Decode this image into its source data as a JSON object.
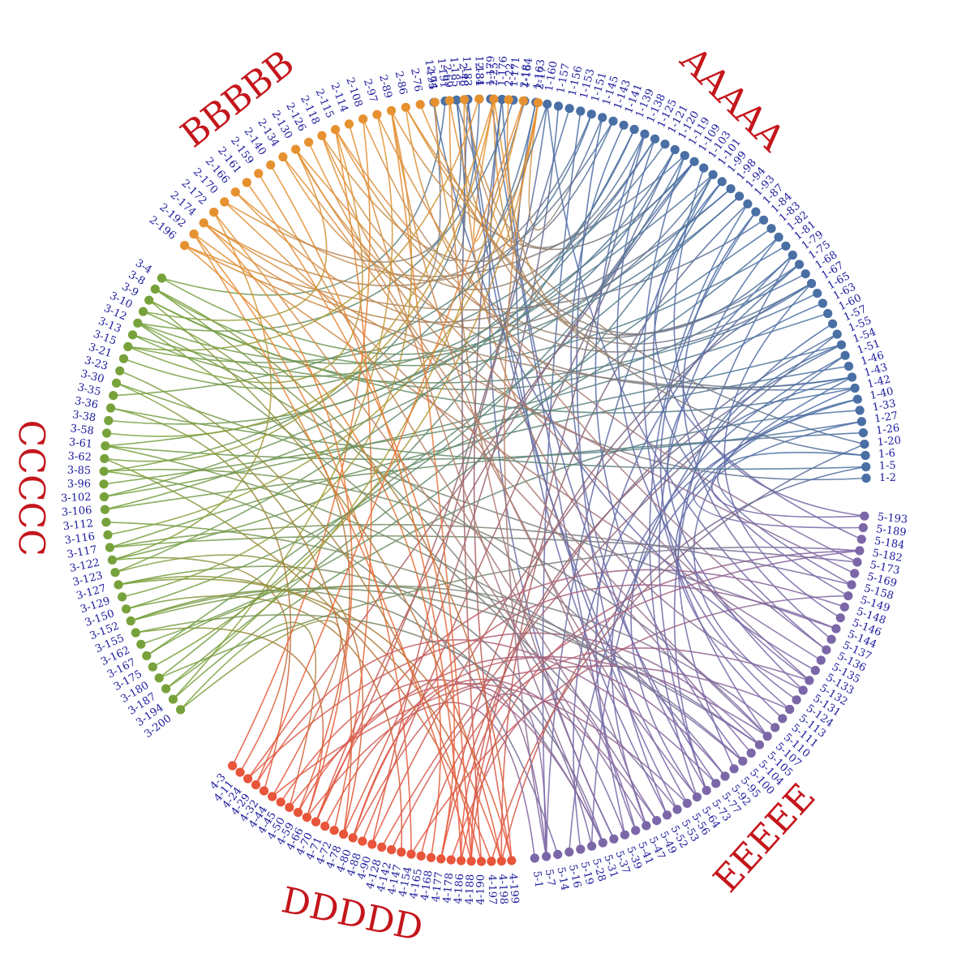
{
  "diagram": {
    "type": "chord-network",
    "groups": [
      {
        "id": "1",
        "title": "AAAAA",
        "color": "#4a6fa5",
        "nodes": [
          "1-195",
          "1-191",
          "1-185",
          "1-183",
          "1-181",
          "1-179",
          "1-176",
          "1-171",
          "1-164",
          "1-163",
          "1-160",
          "1-157",
          "1-156",
          "1-153",
          "1-151",
          "1-145",
          "1-143",
          "1-141",
          "1-139",
          "1-138",
          "1-125",
          "1-121",
          "1-120",
          "1-119",
          "1-109",
          "1-103",
          "1-101",
          "1-99",
          "1-98",
          "1-94",
          "1-93",
          "1-87",
          "1-84",
          "1-83",
          "1-82",
          "1-81",
          "1-79",
          "1-75",
          "1-68",
          "1-67",
          "1-65",
          "1-63",
          "1-60",
          "1-57",
          "1-55",
          "1-54",
          "1-51",
          "1-46",
          "1-43",
          "1-42",
          "1-40",
          "1-33",
          "1-27",
          "1-26",
          "1-20",
          "1-6",
          "1-5",
          "1-2"
        ]
      },
      {
        "id": "5",
        "title": "EEEEE",
        "color": "#7b67a8",
        "nodes": [
          "5-193",
          "5-189",
          "5-184",
          "5-182",
          "5-173",
          "5-169",
          "5-158",
          "5-149",
          "5-148",
          "5-146",
          "5-144",
          "5-137",
          "5-136",
          "5-135",
          "5-133",
          "5-132",
          "5-131",
          "5-124",
          "5-113",
          "5-111",
          "5-110",
          "5-107",
          "5-105",
          "5-104",
          "5-100",
          "5-95",
          "5-92",
          "5-77",
          "5-73",
          "5-64",
          "5-56",
          "5-53",
          "5-52",
          "5-49",
          "5-47",
          "5-41",
          "5-39",
          "5-37",
          "5-31",
          "5-28",
          "5-19",
          "5-16",
          "5-14",
          "5-7",
          "5-1"
        ]
      },
      {
        "id": "4",
        "title": "DDDDD",
        "color": "#e8553a",
        "nodes": [
          "4-199",
          "4-198",
          "4-197",
          "4-190",
          "4-188",
          "4-186",
          "4-178",
          "4-177",
          "4-168",
          "4-165",
          "4-154",
          "4-147",
          "4-142",
          "4-128",
          "4-90",
          "4-88",
          "4-80",
          "4-78",
          "4-72",
          "4-71",
          "4-70",
          "4-66",
          "4-59",
          "4-50",
          "4-45",
          "4-44",
          "4-32",
          "4-29",
          "4-24",
          "4-11",
          "4-3"
        ]
      },
      {
        "id": "3",
        "title": "CCCCC",
        "color": "#77a23b",
        "nodes": [
          "3-200",
          "3-194",
          "3-187",
          "3-180",
          "3-175",
          "3-167",
          "3-162",
          "3-155",
          "3-152",
          "3-150",
          "3-129",
          "3-127",
          "3-123",
          "3-122",
          "3-117",
          "3-116",
          "3-112",
          "3-106",
          "3-102",
          "3-96",
          "3-85",
          "3-62",
          "3-61",
          "3-58",
          "3-38",
          "3-36",
          "3-35",
          "3-30",
          "3-23",
          "3-21",
          "3-15",
          "3-13",
          "3-12",
          "3-10",
          "3-9",
          "3-8",
          "3-4"
        ]
      },
      {
        "id": "2",
        "title": "BBBBB",
        "color": "#e6912f",
        "nodes": [
          "2-196",
          "2-192",
          "2-174",
          "2-172",
          "2-170",
          "2-166",
          "2-161",
          "2-159",
          "2-140",
          "2-134",
          "2-130",
          "2-126",
          "2-118",
          "2-115",
          "2-114",
          "2-108",
          "2-97",
          "2-89",
          "2-86",
          "2-76",
          "2-74",
          "2-69",
          "2-48",
          "2-34",
          "2-25",
          "2-22",
          "2-18",
          "2-17"
        ]
      }
    ],
    "link_count": 200,
    "link_seed": 7
  }
}
